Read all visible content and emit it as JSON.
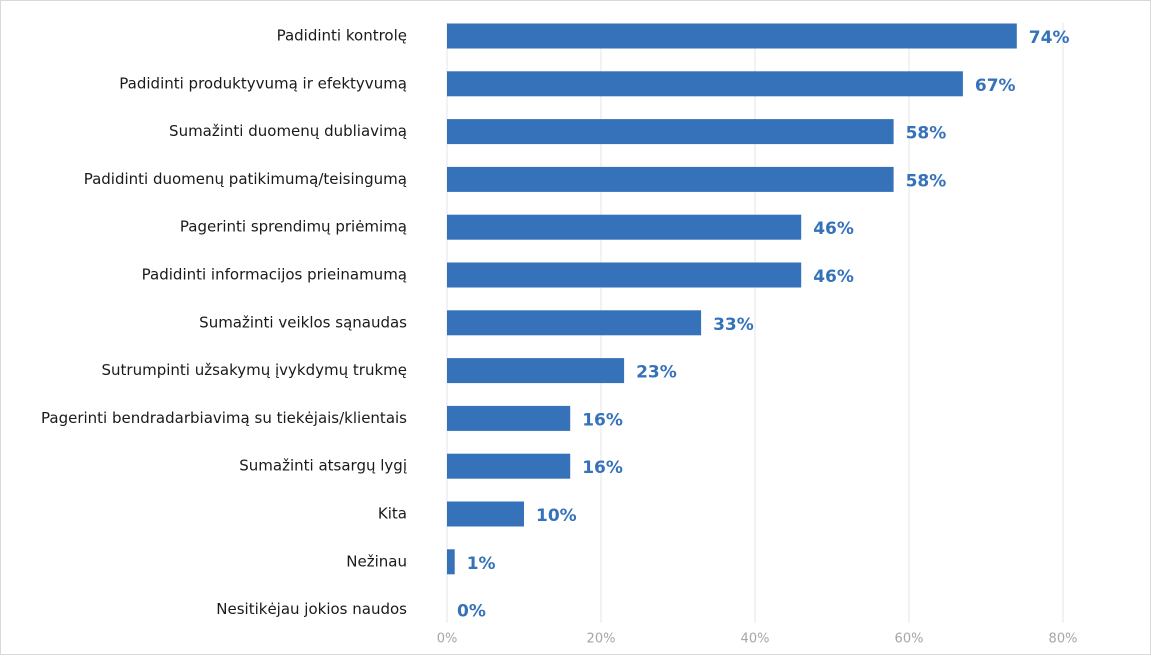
{
  "colors": {
    "bar": "#3672ba",
    "value_label": "#3672ba",
    "grid": "#e6e6e6",
    "tick_label": "#a6a6a6"
  },
  "chart_data": {
    "type": "bar",
    "orientation": "horizontal",
    "title": "",
    "xlabel": "",
    "ylabel": "",
    "categories": [
      "Padidinti kontrolę",
      "Padidinti produktyvumą ir efektyvumą",
      "Sumažinti duomenų dubliavimą",
      "Padidinti duomenų patikimumą/teisingumą",
      "Pagerinti sprendimų priėmimą",
      "Padidinti informacijos prieinamumą",
      "Sumažinti veiklos sąnaudas",
      "Sutrumpinti užsakymų įvykdymų trukmę",
      "Pagerinti bendradarbiavimą su tiekėjais/klientais",
      "Sumažinti atsargų lygį",
      "Kita",
      "Nežinau",
      "Nesitikėjau jokios naudos"
    ],
    "values": [
      74,
      67,
      58,
      58,
      46,
      46,
      33,
      23,
      16,
      16,
      10,
      1,
      0
    ],
    "value_labels": [
      "74%",
      "67%",
      "58%",
      "58%",
      "46%",
      "46%",
      "33%",
      "23%",
      "16%",
      "16%",
      "10%",
      "1%",
      "0%"
    ],
    "xlim": [
      0,
      80
    ],
    "x_ticks": [
      0,
      20,
      40,
      60,
      80
    ],
    "x_tick_labels": [
      "0%",
      "20%",
      "40%",
      "60%",
      "80%"
    ],
    "grid": "vertical",
    "legend": "none"
  }
}
